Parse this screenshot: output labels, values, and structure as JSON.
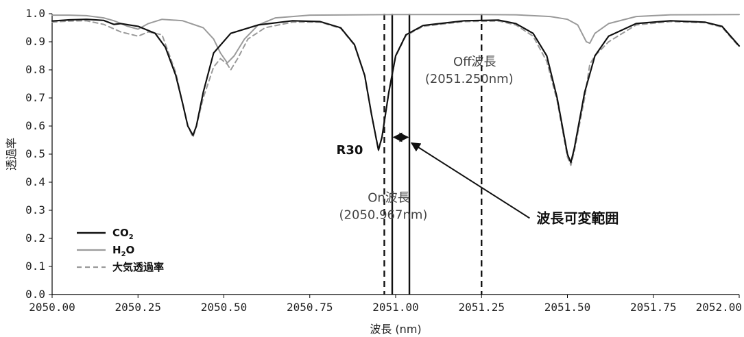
{
  "chart_data": {
    "type": "line",
    "title": "",
    "xlabel": "波長 (nm)",
    "ylabel": "透過率",
    "xlim": [
      2050.0,
      2052.0
    ],
    "ylim": [
      0.0,
      1.0
    ],
    "x_ticks": [
      {
        "value": 2050.0,
        "label": "2050.00"
      },
      {
        "value": 2050.25,
        "label": "2050.25"
      },
      {
        "value": 2050.5,
        "label": "2050.50"
      },
      {
        "value": 2050.75,
        "label": "2050.75"
      },
      {
        "value": 2051.0,
        "label": "2051.00"
      },
      {
        "value": 2051.25,
        "label": "2051.25"
      },
      {
        "value": 2051.5,
        "label": "2051.50"
      },
      {
        "value": 2051.75,
        "label": "2051.75"
      },
      {
        "value": 2052.0,
        "label": "2052.00"
      }
    ],
    "y_ticks": [
      {
        "value": 0.0,
        "label": "0.0"
      },
      {
        "value": 0.1,
        "label": "0.1"
      },
      {
        "value": 0.2,
        "label": "0.2"
      },
      {
        "value": 0.3,
        "label": "0.3"
      },
      {
        "value": 0.4,
        "label": "0.4"
      },
      {
        "value": 0.5,
        "label": "0.5"
      },
      {
        "value": 0.6,
        "label": "0.6"
      },
      {
        "value": 0.7,
        "label": "0.7"
      },
      {
        "value": 0.8,
        "label": "0.8"
      },
      {
        "value": 0.9,
        "label": "0.9"
      },
      {
        "value": 1.0,
        "label": "1.0"
      }
    ],
    "grid": false,
    "legend_position": "bottom-left",
    "series": [
      {
        "name": "CO",
        "name_subscript": "2",
        "color": "#111111",
        "dash": "solid",
        "points": [
          [
            2050.0,
            0.974
          ],
          [
            2050.05,
            0.978
          ],
          [
            2050.1,
            0.98
          ],
          [
            2050.15,
            0.976
          ],
          [
            2050.18,
            0.962
          ],
          [
            2050.2,
            0.965
          ],
          [
            2050.25,
            0.955
          ],
          [
            2050.3,
            0.93
          ],
          [
            2050.33,
            0.88
          ],
          [
            2050.36,
            0.78
          ],
          [
            2050.38,
            0.68
          ],
          [
            2050.395,
            0.6
          ],
          [
            2050.41,
            0.567
          ],
          [
            2050.42,
            0.6
          ],
          [
            2050.44,
            0.72
          ],
          [
            2050.47,
            0.86
          ],
          [
            2050.52,
            0.93
          ],
          [
            2050.6,
            0.96
          ],
          [
            2050.7,
            0.975
          ],
          [
            2050.78,
            0.972
          ],
          [
            2050.84,
            0.95
          ],
          [
            2050.88,
            0.89
          ],
          [
            2050.91,
            0.78
          ],
          [
            2050.93,
            0.64
          ],
          [
            2050.95,
            0.515
          ],
          [
            2050.96,
            0.56
          ],
          [
            2050.98,
            0.72
          ],
          [
            2051.0,
            0.85
          ],
          [
            2051.03,
            0.925
          ],
          [
            2051.08,
            0.958
          ],
          [
            2051.2,
            0.975
          ],
          [
            2051.3,
            0.977
          ],
          [
            2051.35,
            0.965
          ],
          [
            2051.4,
            0.93
          ],
          [
            2051.44,
            0.85
          ],
          [
            2051.47,
            0.7
          ],
          [
            2051.5,
            0.5
          ],
          [
            2051.51,
            0.47
          ],
          [
            2051.52,
            0.52
          ],
          [
            2051.55,
            0.72
          ],
          [
            2051.58,
            0.85
          ],
          [
            2051.62,
            0.92
          ],
          [
            2051.7,
            0.965
          ],
          [
            2051.8,
            0.975
          ],
          [
            2051.9,
            0.97
          ],
          [
            2051.95,
            0.955
          ],
          [
            2052.0,
            0.885
          ]
        ]
      },
      {
        "name": "H",
        "name_subscript": "2",
        "name_suffix": "O",
        "color": "#9a9a9a",
        "dash": "solid",
        "points": [
          [
            2050.0,
            0.995
          ],
          [
            2050.05,
            0.995
          ],
          [
            2050.1,
            0.993
          ],
          [
            2050.15,
            0.985
          ],
          [
            2050.18,
            0.975
          ],
          [
            2050.22,
            0.955
          ],
          [
            2050.25,
            0.945
          ],
          [
            2050.28,
            0.965
          ],
          [
            2050.32,
            0.98
          ],
          [
            2050.38,
            0.975
          ],
          [
            2050.44,
            0.95
          ],
          [
            2050.47,
            0.91
          ],
          [
            2050.49,
            0.86
          ],
          [
            2050.51,
            0.825
          ],
          [
            2050.53,
            0.85
          ],
          [
            2050.56,
            0.91
          ],
          [
            2050.6,
            0.96
          ],
          [
            2050.65,
            0.985
          ],
          [
            2050.75,
            0.995
          ],
          [
            2051.0,
            0.997
          ],
          [
            2051.25,
            0.997
          ],
          [
            2051.35,
            0.996
          ],
          [
            2051.45,
            0.99
          ],
          [
            2051.5,
            0.98
          ],
          [
            2051.53,
            0.96
          ],
          [
            2051.555,
            0.9
          ],
          [
            2051.565,
            0.895
          ],
          [
            2051.58,
            0.93
          ],
          [
            2051.62,
            0.965
          ],
          [
            2051.7,
            0.99
          ],
          [
            2051.8,
            0.996
          ],
          [
            2052.0,
            0.997
          ]
        ]
      },
      {
        "name": "大気透過率",
        "color": "#9a9a9a",
        "dash": "dashed",
        "points": [
          [
            2050.0,
            0.97
          ],
          [
            2050.05,
            0.974
          ],
          [
            2050.1,
            0.975
          ],
          [
            2050.15,
            0.962
          ],
          [
            2050.2,
            0.935
          ],
          [
            2050.25,
            0.92
          ],
          [
            2050.28,
            0.935
          ],
          [
            2050.32,
            0.925
          ],
          [
            2050.36,
            0.79
          ],
          [
            2050.38,
            0.68
          ],
          [
            2050.395,
            0.6
          ],
          [
            2050.41,
            0.56
          ],
          [
            2050.42,
            0.6
          ],
          [
            2050.44,
            0.7
          ],
          [
            2050.47,
            0.81
          ],
          [
            2050.49,
            0.84
          ],
          [
            2050.51,
            0.82
          ],
          [
            2050.52,
            0.8
          ],
          [
            2050.54,
            0.84
          ],
          [
            2050.57,
            0.91
          ],
          [
            2050.62,
            0.95
          ],
          [
            2050.7,
            0.97
          ],
          [
            2050.78,
            0.97
          ],
          [
            2050.84,
            0.948
          ],
          [
            2050.88,
            0.888
          ],
          [
            2050.91,
            0.778
          ],
          [
            2050.93,
            0.638
          ],
          [
            2050.95,
            0.512
          ],
          [
            2050.96,
            0.558
          ],
          [
            2050.98,
            0.718
          ],
          [
            2051.0,
            0.848
          ],
          [
            2051.03,
            0.922
          ],
          [
            2051.08,
            0.955
          ],
          [
            2051.2,
            0.972
          ],
          [
            2051.3,
            0.974
          ],
          [
            2051.35,
            0.96
          ],
          [
            2051.4,
            0.92
          ],
          [
            2051.44,
            0.83
          ],
          [
            2051.47,
            0.69
          ],
          [
            2051.5,
            0.49
          ],
          [
            2051.51,
            0.46
          ],
          [
            2051.52,
            0.51
          ],
          [
            2051.55,
            0.7
          ],
          [
            2051.565,
            0.82
          ],
          [
            2051.58,
            0.85
          ],
          [
            2051.62,
            0.9
          ],
          [
            2051.7,
            0.96
          ],
          [
            2051.8,
            0.972
          ],
          [
            2051.9,
            0.968
          ],
          [
            2051.95,
            0.952
          ],
          [
            2052.0,
            0.882
          ]
        ]
      }
    ],
    "vertical_lines": [
      {
        "id": "on-dashed",
        "x": 2050.967,
        "style": "dashed",
        "color": "#111111"
      },
      {
        "id": "range-left",
        "x": 2050.99,
        "style": "solid",
        "color": "#111111"
      },
      {
        "id": "range-right",
        "x": 2051.04,
        "style": "solid",
        "color": "#111111"
      },
      {
        "id": "off-dashed",
        "x": 2051.25,
        "style": "dashed",
        "color": "#111111"
      }
    ],
    "annotations": {
      "r30_label": "R30",
      "r30_at": [
        2050.905,
        0.5
      ],
      "on_label_line1": "On波長",
      "on_label_line2": "(2050.967nm)",
      "on_label_at": [
        2050.98,
        0.33
      ],
      "off_label_line1": "Off波長",
      "off_label_line2": "(2051.250nm)",
      "off_label_at": [
        2051.25,
        0.815
      ],
      "range_label": "波長可変範囲",
      "range_label_at": [
        2051.41,
        0.255
      ],
      "range_arrow_from": [
        2051.39,
        0.272
      ],
      "range_arrow_to": [
        2051.04,
        0.54
      ],
      "range_double_arrow_y": 0.56,
      "range_double_arrow_x": [
        2050.99,
        2051.04
      ]
    },
    "legend": {
      "items": [
        {
          "series_index": 0
        },
        {
          "series_index": 1
        },
        {
          "series_index": 2
        }
      ]
    }
  }
}
